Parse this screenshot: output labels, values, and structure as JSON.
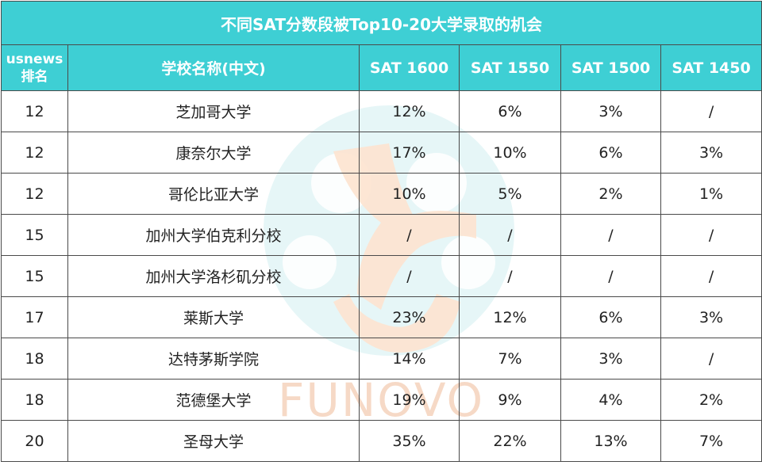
{
  "title": "不同SAT分数段被Top10-20大学录取的机会",
  "headers": {
    "rank_line1": "usnews",
    "rank_line2": "排名",
    "school": "学校名称(中文)",
    "sat1600": "SAT 1600",
    "sat1550": "SAT 1550",
    "sat1500": "SAT 1500",
    "sat1450": "SAT 1450"
  },
  "rows": [
    {
      "rank": "12",
      "school": "芝加哥大学",
      "s1600": "12%",
      "s1550": "6%",
      "s1500": "3%",
      "s1450": "/"
    },
    {
      "rank": "12",
      "school": "康奈尔大学",
      "s1600": "17%",
      "s1550": "10%",
      "s1500": "6%",
      "s1450": "3%"
    },
    {
      "rank": "12",
      "school": "哥伦比亚大学",
      "s1600": "10%",
      "s1550": "5%",
      "s1500": "2%",
      "s1450": "1%"
    },
    {
      "rank": "15",
      "school": "加州大学伯克利分校",
      "s1600": "/",
      "s1550": "/",
      "s1500": "/",
      "s1450": "/"
    },
    {
      "rank": "15",
      "school": "加州大学洛杉矶分校",
      "s1600": "/",
      "s1550": "/",
      "s1500": "/",
      "s1450": "/"
    },
    {
      "rank": "17",
      "school": "莱斯大学",
      "s1600": "23%",
      "s1550": "12%",
      "s1500": "6%",
      "s1450": "3%"
    },
    {
      "rank": "18",
      "school": "达特茅斯学院",
      "s1600": "14%",
      "s1550": "7%",
      "s1500": "3%",
      "s1450": "/"
    },
    {
      "rank": "18",
      "school": "范德堡大学",
      "s1600": "19%",
      "s1550": "9%",
      "s1500": "4%",
      "s1450": "2%"
    },
    {
      "rank": "20",
      "school": "圣母大学",
      "s1600": "35%",
      "s1550": "22%",
      "s1500": "13%",
      "s1450": "7%"
    }
  ],
  "watermark": {
    "text": "FUNOVO",
    "colors": {
      "teal": "#dff3f4",
      "peach": "#fde3cf"
    }
  },
  "colors": {
    "header_bg": "#3ecfd4",
    "header_text": "#ffffff",
    "border": "#4a4a4a"
  }
}
